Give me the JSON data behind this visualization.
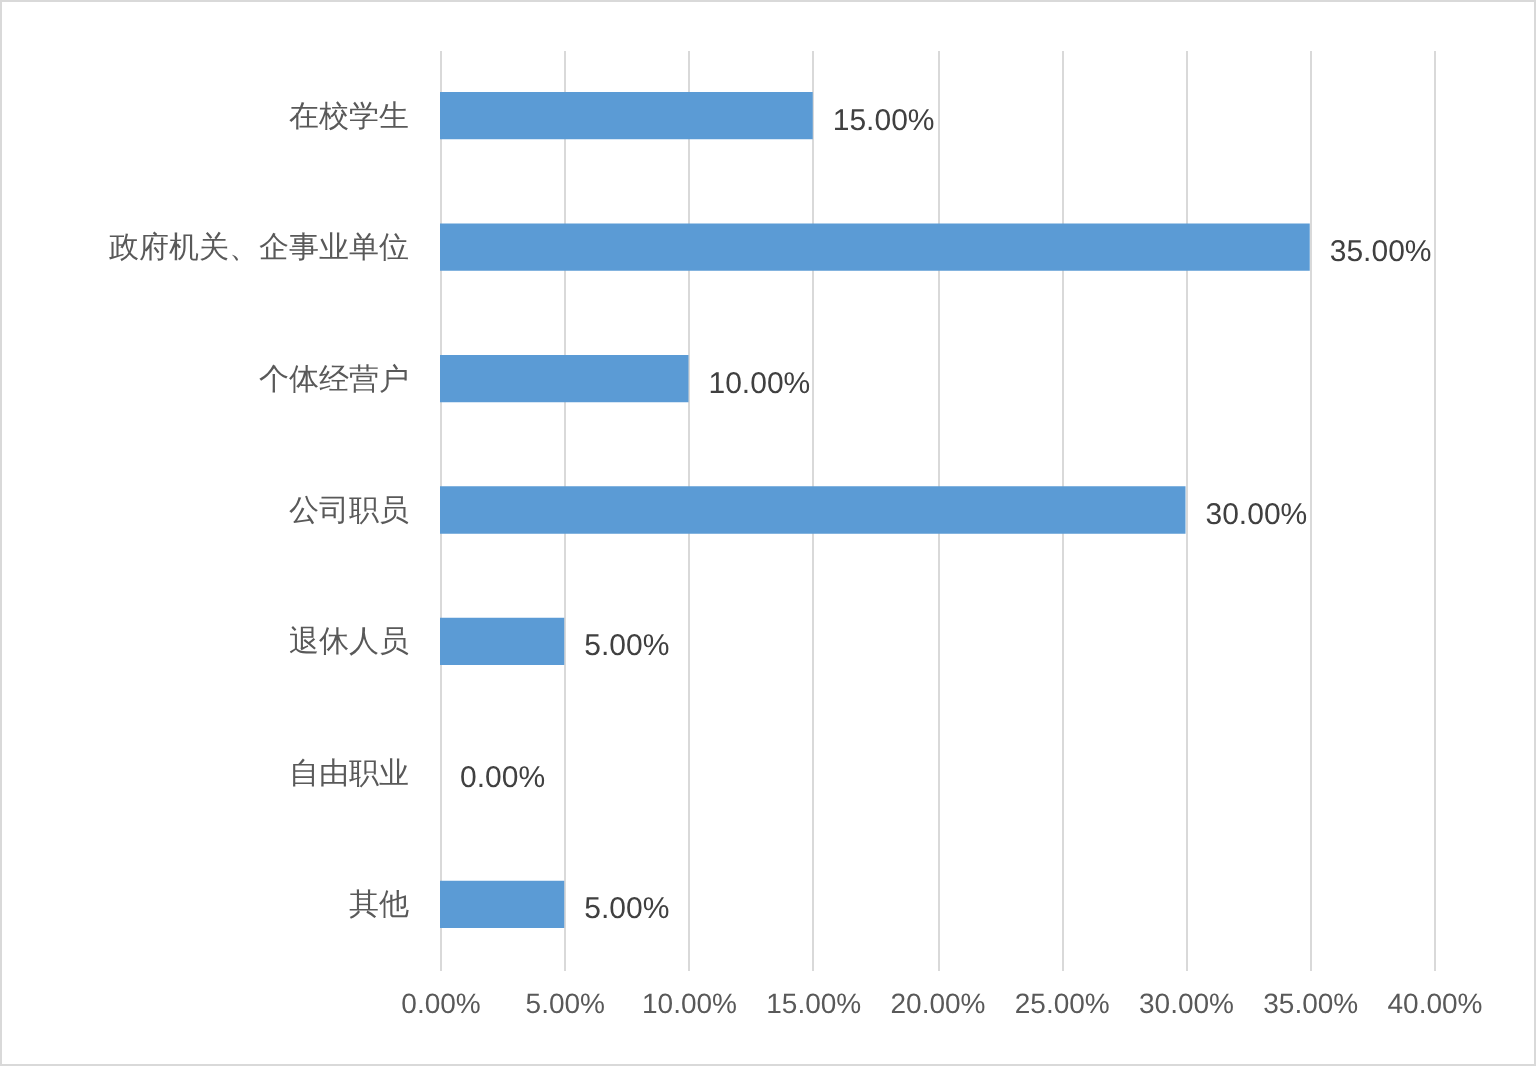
{
  "chart_data": {
    "type": "bar",
    "orientation": "horizontal",
    "categories": [
      "在校学生",
      "政府机关、企事业单位",
      "个体经营户",
      "公司职员",
      "退休人员",
      "自由职业",
      "其他"
    ],
    "values": [
      15,
      35,
      10,
      30,
      5,
      0,
      5
    ],
    "value_labels": [
      "15.00%",
      "35.00%",
      "10.00%",
      "30.00%",
      "5.00%",
      "0.00%",
      "5.00%"
    ],
    "color": "#5b9bd5",
    "xlim": [
      0,
      40
    ],
    "xticks": [
      {
        "value": 0,
        "label": "0.00%"
      },
      {
        "value": 5,
        "label": "5.00%"
      },
      {
        "value": 10,
        "label": "10.00%"
      },
      {
        "value": 15,
        "label": "15.00%"
      },
      {
        "value": 20,
        "label": "20.00%"
      },
      {
        "value": 25,
        "label": "25.00%"
      },
      {
        "value": 30,
        "label": "30.00%"
      },
      {
        "value": 35,
        "label": "35.00%"
      },
      {
        "value": 40,
        "label": "40.00%"
      }
    ],
    "grid": "x"
  }
}
